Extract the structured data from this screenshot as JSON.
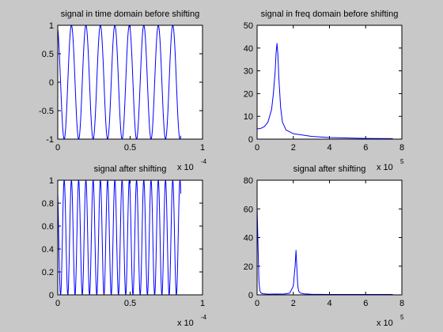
{
  "figure": {
    "background": "#c8c8c8",
    "axes_color": "#000000",
    "line_color": "#0000ff"
  },
  "chart_data": [
    {
      "type": "line",
      "title": "signal in time domain before shifting",
      "xlim": [
        0,
        0.0001
      ],
      "ylim": [
        -1,
        1
      ],
      "xticks": [
        "0",
        "0.5",
        "1"
      ],
      "xtick_values": [
        0,
        5e-05,
        0.0001
      ],
      "yticks": [
        "-1",
        "-0.5",
        "0",
        "0.5",
        "1"
      ],
      "ytick_values": [
        -1,
        -0.5,
        0,
        0.5,
        1
      ],
      "x_multiplier": {
        "base": "x 10",
        "exp": "-4"
      },
      "series": [
        {
          "kind": "cosine",
          "amplitude": 1,
          "offset": 0,
          "phase_deg": 20,
          "frequency_hz": 100000,
          "x_start": 0,
          "x_end": 8.5e-05,
          "samples": 680
        }
      ]
    },
    {
      "type": "line",
      "title": "signal in freq domain before shifting",
      "xlim": [
        0,
        800000.0
      ],
      "ylim": [
        0,
        50
      ],
      "xticks": [
        "0",
        "2",
        "4",
        "6",
        "8"
      ],
      "xtick_values": [
        0,
        200000.0,
        400000.0,
        600000.0,
        800000.0
      ],
      "yticks": [
        "0",
        "10",
        "20",
        "30",
        "40",
        "50"
      ],
      "ytick_values": [
        0,
        10,
        20,
        30,
        40,
        50
      ],
      "x_multiplier": {
        "base": "x 10",
        "exp": "5"
      },
      "series": [
        {
          "kind": "points",
          "x": [
            0,
            20000,
            40000,
            60000,
            80000,
            90000,
            100000,
            105000,
            110000,
            115000,
            120000,
            130000,
            140000,
            160000,
            200000,
            300000,
            400000,
            600000,
            750000
          ],
          "y": [
            4.5,
            4.7,
            5.5,
            7.5,
            13,
            20,
            30,
            38,
            42,
            37,
            27,
            14,
            7.5,
            4,
            2.4,
            1.2,
            0.7,
            0.3,
            0.2
          ]
        }
      ]
    },
    {
      "type": "line",
      "title": "signal after shifting",
      "xlim": [
        0,
        0.0001
      ],
      "ylim": [
        0,
        1
      ],
      "xticks": [
        "0",
        "0.5",
        "1"
      ],
      "xtick_values": [
        0,
        5e-05,
        0.0001
      ],
      "yticks": [
        "0",
        "0.2",
        "0.4",
        "0.6",
        "0.8",
        "1"
      ],
      "ytick_values": [
        0,
        0.2,
        0.4,
        0.6,
        0.8,
        1
      ],
      "x_multiplier": {
        "base": "x 10",
        "exp": "-4"
      },
      "series": [
        {
          "kind": "cosine",
          "amplitude": 0.5,
          "offset": 0.5,
          "phase_deg": 40,
          "frequency_hz": 200000,
          "x_start": 0,
          "x_end": 8.5e-05,
          "samples": 1360
        }
      ]
    },
    {
      "type": "line",
      "title": "signal after shifting",
      "xlim": [
        0,
        800000.0
      ],
      "ylim": [
        0,
        80
      ],
      "xticks": [
        "0",
        "2",
        "4",
        "6",
        "8"
      ],
      "xtick_values": [
        0,
        200000.0,
        400000.0,
        600000.0,
        800000.0
      ],
      "yticks": [
        "0",
        "20",
        "40",
        "60",
        "80"
      ],
      "ytick_values": [
        0,
        20,
        40,
        60,
        80
      ],
      "x_multiplier": {
        "base": "x 10",
        "exp": "5"
      },
      "series": [
        {
          "kind": "points",
          "x": [
            0,
            5000,
            10000,
            15000,
            20000,
            30000,
            60000,
            150000,
            180000,
            200000,
            210000,
            215000,
            220000,
            225000,
            230000,
            240000,
            260000,
            300000,
            400000,
            600000,
            750000
          ],
          "y": [
            62,
            35,
            10,
            3,
            1.5,
            0.8,
            0.5,
            0.6,
            1.2,
            6,
            20,
            31,
            18,
            6,
            2.5,
            1.2,
            0.7,
            0.4,
            0.3,
            0.3,
            0.3
          ]
        }
      ]
    }
  ]
}
